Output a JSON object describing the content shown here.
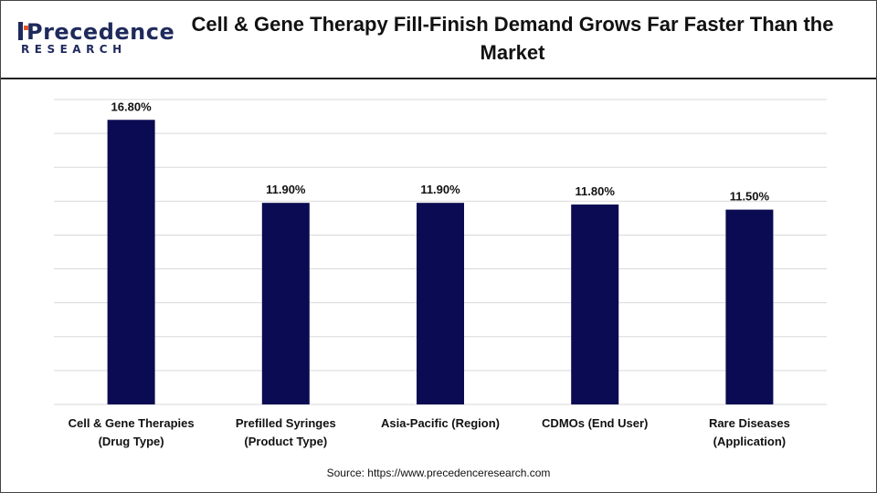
{
  "brand": {
    "name": "Precedence",
    "tagline": "RESEARCH",
    "colors": {
      "navy": "#1f2a5c",
      "accent": "#e8542a"
    }
  },
  "title": "Cell & Gene Therapy Fill-Finish Demand Grows Far Faster Than the Market",
  "source": "Source: https://www.precedenceresearch.com",
  "chart_data": {
    "type": "bar",
    "categories": [
      [
        "Cell & Gene Therapies",
        "(Drug Type)"
      ],
      [
        "Prefilled Syringes",
        "(Product Type)"
      ],
      [
        "Asia-Pacific (Region)"
      ],
      [
        "CDMOs (End User)"
      ],
      [
        "Rare Diseases",
        "(Application)"
      ]
    ],
    "values": [
      16.8,
      11.9,
      11.9,
      11.8,
      11.5
    ],
    "data_labels": [
      "16.80%",
      "11.90%",
      "11.90%",
      "11.80%",
      "11.50%"
    ],
    "ylim": [
      0,
      18
    ],
    "grid": true,
    "bar_color": "#0a0b52",
    "gridline_color": "#d9d9d9"
  }
}
